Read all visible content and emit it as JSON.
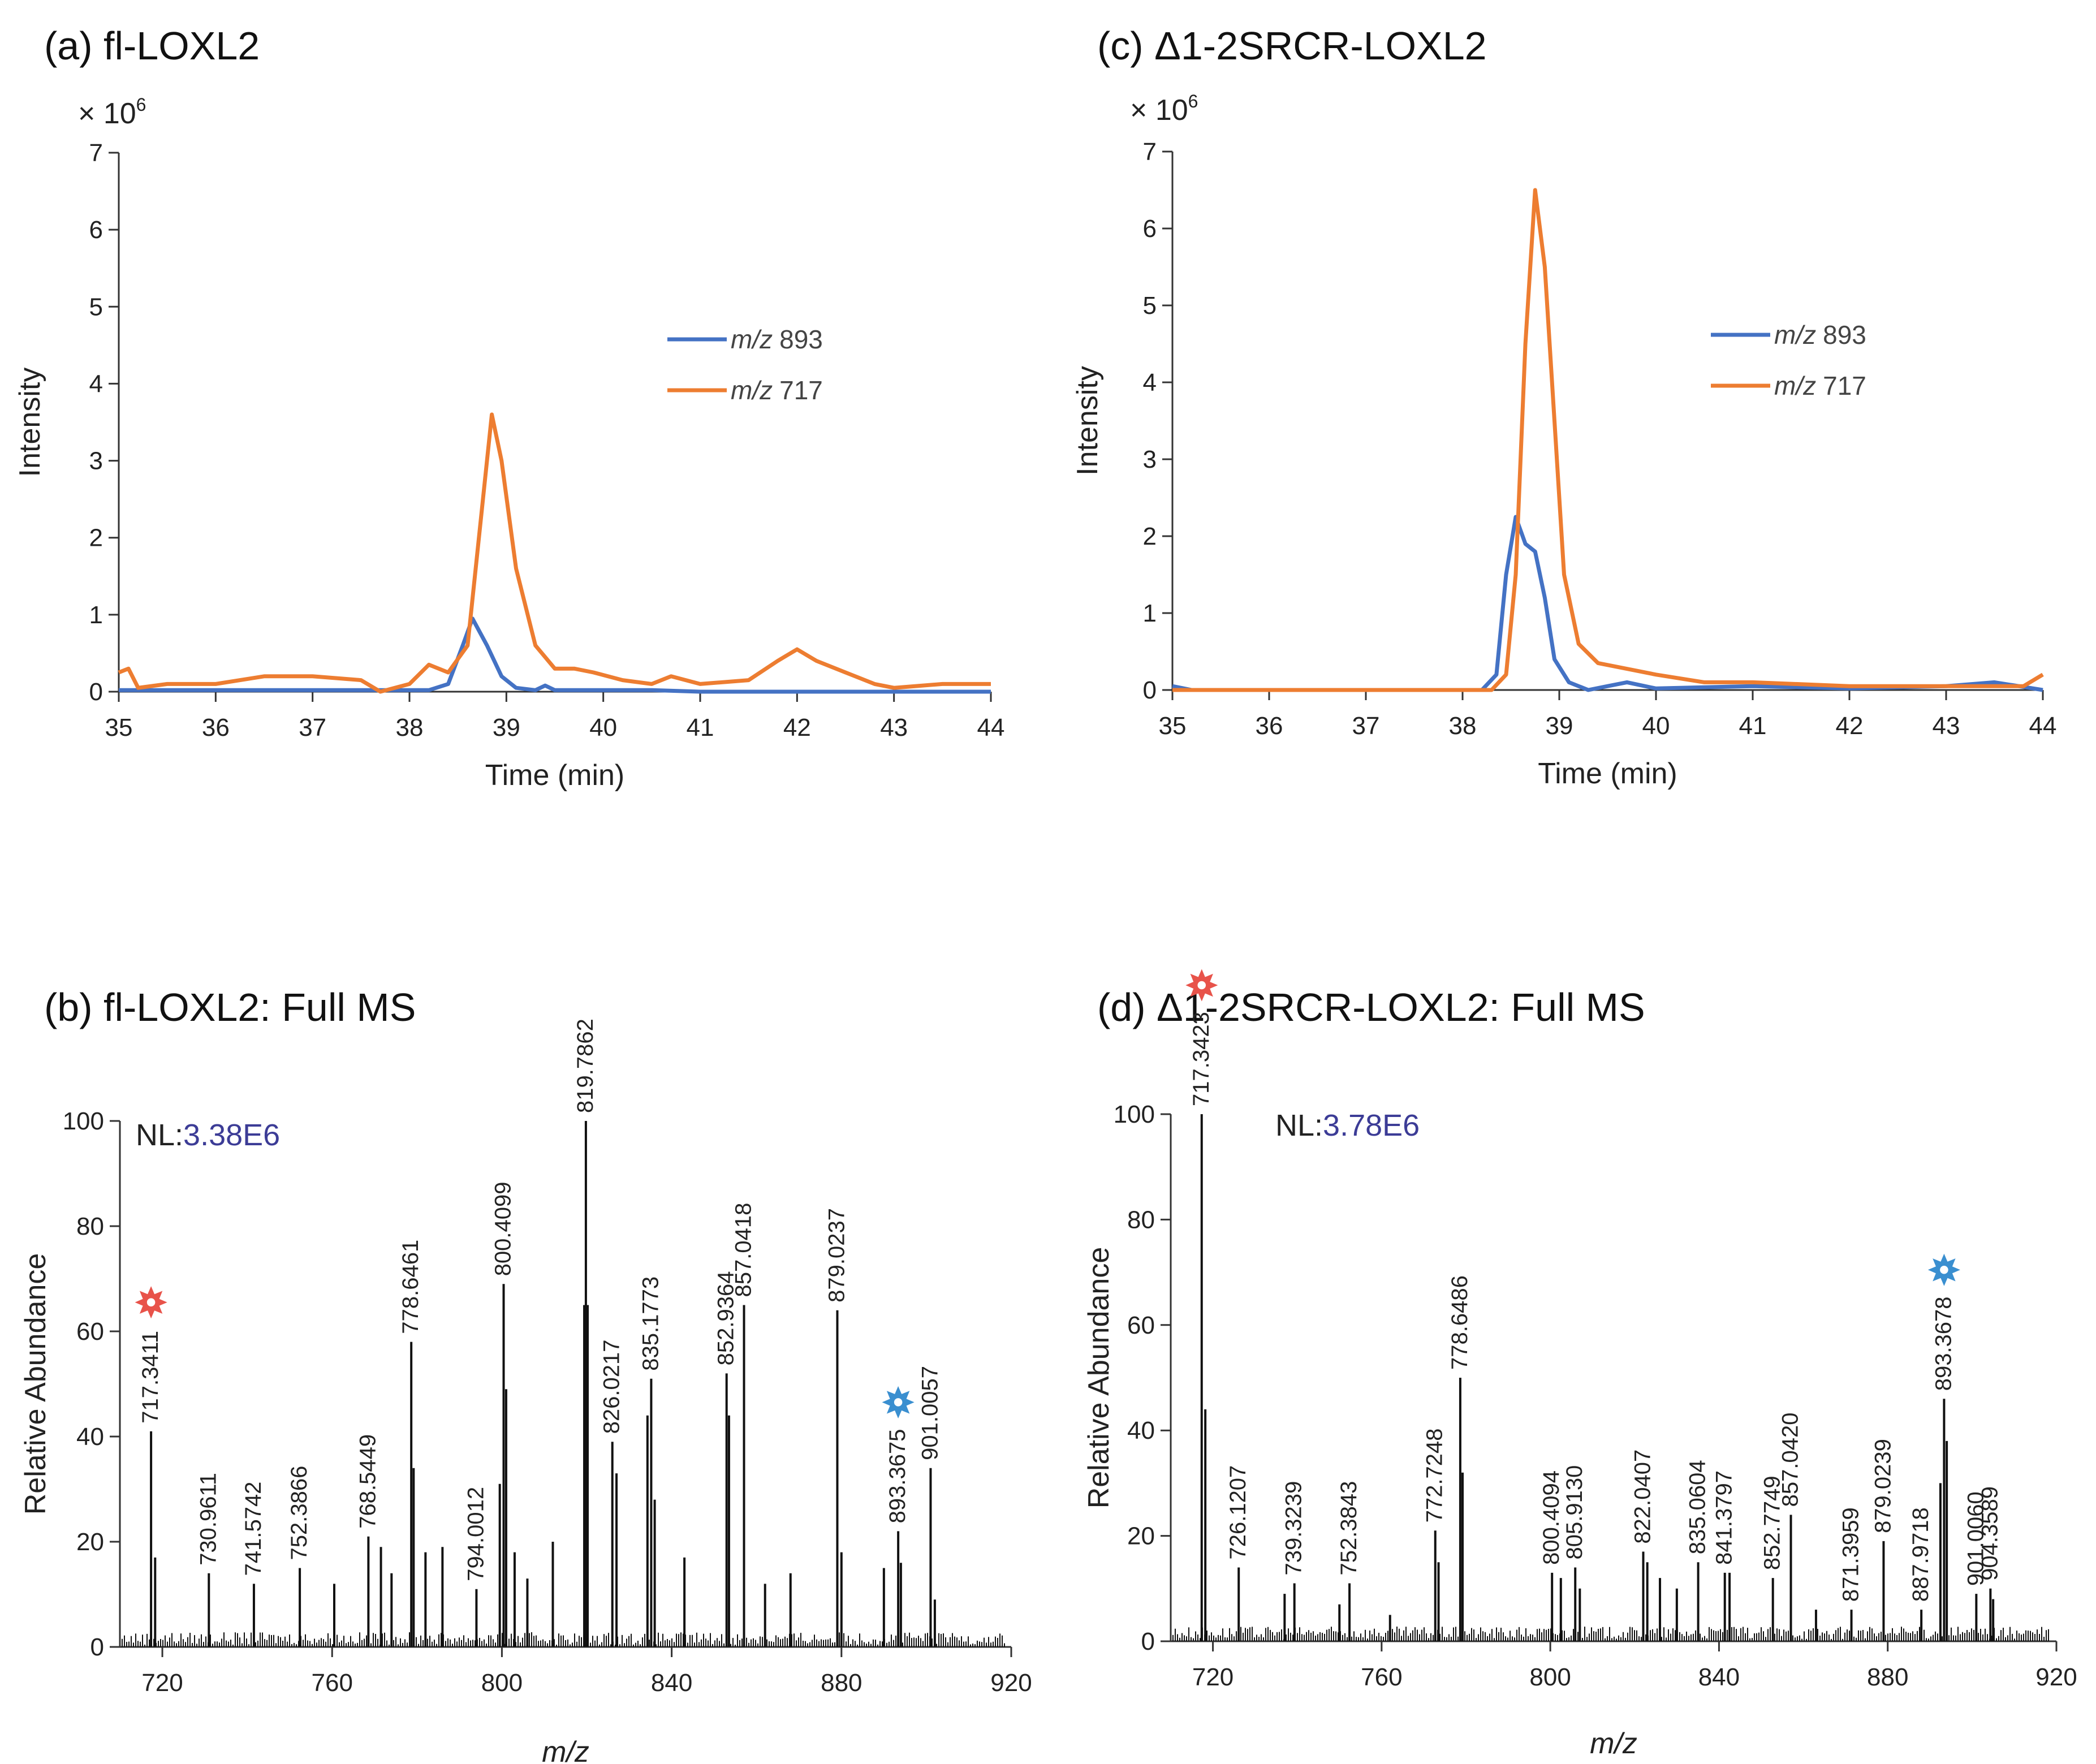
{
  "colors": {
    "mz893": "#4472c4",
    "mz717": "#ed7d31",
    "spectrum": "#111111",
    "nl_value": "#3c3c96",
    "star_red": "#e8534a",
    "star_blue": "#3a8fd0"
  },
  "chart_data": [
    {
      "id": "a",
      "type": "line",
      "title": "(a) fl-LOXL2",
      "multiplier": "× 10",
      "multiplier_exp": "6",
      "xlabel": "Time (min)",
      "ylabel": "Intensity",
      "xlim": [
        35,
        44
      ],
      "ylim": [
        0,
        7
      ],
      "xticks": [
        35,
        36,
        37,
        38,
        39,
        40,
        41,
        42,
        43,
        44
      ],
      "yticks": [
        0,
        1,
        2,
        3,
        4,
        5,
        6,
        7
      ],
      "legend_position": "right-middle",
      "series": [
        {
          "name": "m/z 893",
          "mz_prefix": "m/z",
          "mz_value": "893",
          "color": "#4472c4",
          "points": [
            [
              35,
              0.02
            ],
            [
              38.2,
              0.02
            ],
            [
              38.4,
              0.1
            ],
            [
              38.55,
              0.6
            ],
            [
              38.65,
              0.95
            ],
            [
              38.8,
              0.6
            ],
            [
              38.95,
              0.2
            ],
            [
              39.1,
              0.05
            ],
            [
              39.3,
              0.02
            ],
            [
              39.4,
              0.08
            ],
            [
              39.5,
              0.02
            ],
            [
              40.5,
              0.02
            ],
            [
              41,
              0.0
            ],
            [
              44,
              0.0
            ]
          ]
        },
        {
          "name": "m/z 717",
          "mz_prefix": "m/z",
          "mz_value": "717",
          "color": "#ed7d31",
          "points": [
            [
              35,
              0.25
            ],
            [
              35.1,
              0.3
            ],
            [
              35.2,
              0.05
            ],
            [
              35.5,
              0.1
            ],
            [
              36,
              0.1
            ],
            [
              36.5,
              0.2
            ],
            [
              37,
              0.2
            ],
            [
              37.5,
              0.15
            ],
            [
              37.7,
              0.0
            ],
            [
              38,
              0.1
            ],
            [
              38.2,
              0.35
            ],
            [
              38.4,
              0.25
            ],
            [
              38.6,
              0.6
            ],
            [
              38.75,
              2.4
            ],
            [
              38.85,
              3.6
            ],
            [
              38.95,
              3.0
            ],
            [
              39.1,
              1.6
            ],
            [
              39.3,
              0.6
            ],
            [
              39.5,
              0.3
            ],
            [
              39.7,
              0.3
            ],
            [
              39.9,
              0.25
            ],
            [
              40.2,
              0.15
            ],
            [
              40.5,
              0.1
            ],
            [
              40.7,
              0.2
            ],
            [
              41.0,
              0.1
            ],
            [
              41.5,
              0.15
            ],
            [
              41.8,
              0.4
            ],
            [
              42.0,
              0.55
            ],
            [
              42.2,
              0.4
            ],
            [
              42.5,
              0.25
            ],
            [
              42.8,
              0.1
            ],
            [
              43.0,
              0.05
            ],
            [
              43.5,
              0.1
            ],
            [
              44,
              0.1
            ]
          ]
        }
      ]
    },
    {
      "id": "c",
      "type": "line",
      "title": "(c) Δ1-2SRCR-LOXL2",
      "multiplier": "× 10",
      "multiplier_exp": "6",
      "xlabel": "Time (min)",
      "ylabel": "Intensity",
      "xlim": [
        35,
        44
      ],
      "ylim": [
        0,
        7
      ],
      "xticks": [
        35,
        36,
        37,
        38,
        39,
        40,
        41,
        42,
        43,
        44
      ],
      "yticks": [
        0,
        1,
        2,
        3,
        4,
        5,
        6,
        7
      ],
      "legend_position": "right-top",
      "series": [
        {
          "name": "m/z 893",
          "mz_prefix": "m/z",
          "mz_value": "893",
          "color": "#4472c4",
          "points": [
            [
              35,
              0.05
            ],
            [
              35.2,
              0.0
            ],
            [
              38.2,
              0.0
            ],
            [
              38.35,
              0.2
            ],
            [
              38.45,
              1.5
            ],
            [
              38.55,
              2.25
            ],
            [
              38.65,
              1.9
            ],
            [
              38.75,
              1.8
            ],
            [
              38.85,
              1.2
            ],
            [
              38.95,
              0.4
            ],
            [
              39.1,
              0.1
            ],
            [
              39.3,
              0.0
            ],
            [
              39.5,
              0.05
            ],
            [
              39.7,
              0.1
            ],
            [
              40,
              0.02
            ],
            [
              41,
              0.05
            ],
            [
              42,
              0.02
            ],
            [
              43,
              0.05
            ],
            [
              43.5,
              0.1
            ],
            [
              44,
              0.0
            ]
          ]
        },
        {
          "name": "m/z 717",
          "mz_prefix": "m/z",
          "mz_value": "717",
          "color": "#ed7d31",
          "points": [
            [
              35,
              0.0
            ],
            [
              38.3,
              0.0
            ],
            [
              38.45,
              0.2
            ],
            [
              38.55,
              1.5
            ],
            [
              38.65,
              4.5
            ],
            [
              38.75,
              6.5
            ],
            [
              38.85,
              5.5
            ],
            [
              38.95,
              3.5
            ],
            [
              39.05,
              1.5
            ],
            [
              39.2,
              0.6
            ],
            [
              39.4,
              0.35
            ],
            [
              39.6,
              0.3
            ],
            [
              40.0,
              0.2
            ],
            [
              40.5,
              0.1
            ],
            [
              41.0,
              0.1
            ],
            [
              42.0,
              0.05
            ],
            [
              43.0,
              0.05
            ],
            [
              43.8,
              0.05
            ],
            [
              44,
              0.2
            ]
          ]
        }
      ]
    },
    {
      "id": "b",
      "type": "bar",
      "title": "(b) fl-LOXL2: Full MS",
      "xlabel": "m/z",
      "ylabel": "Relative Abundance",
      "nl_prefix": "NL:",
      "nl_value": "3.38E6",
      "xlim": [
        710,
        920
      ],
      "ylim": [
        0,
        100
      ],
      "xticks": [
        720,
        760,
        800,
        840,
        880,
        920
      ],
      "yticks": [
        0,
        20,
        40,
        60,
        80,
        100
      ],
      "peaks": [
        {
          "mz": 717.3411,
          "value": 41,
          "label": "717.3411",
          "star": "red"
        },
        {
          "mz": 718.3,
          "value": 17
        },
        {
          "mz": 730.9611,
          "value": 14,
          "label": "730.9611"
        },
        {
          "mz": 741.5742,
          "value": 12,
          "label": "741.5742"
        },
        {
          "mz": 752.3866,
          "value": 15,
          "label": "752.3866"
        },
        {
          "mz": 760.5,
          "value": 12
        },
        {
          "mz": 768.5449,
          "value": 21,
          "label": "768.5449"
        },
        {
          "mz": 771.5,
          "value": 19
        },
        {
          "mz": 774.0,
          "value": 14
        },
        {
          "mz": 778.6461,
          "value": 58,
          "label": "778.6461"
        },
        {
          "mz": 779.2,
          "value": 34
        },
        {
          "mz": 782.0,
          "value": 18
        },
        {
          "mz": 786.0,
          "value": 19
        },
        {
          "mz": 794.0012,
          "value": 11,
          "label": "794.0012"
        },
        {
          "mz": 799.5,
          "value": 31
        },
        {
          "mz": 800.4099,
          "value": 69,
          "label": "800.4099"
        },
        {
          "mz": 801.0,
          "value": 49
        },
        {
          "mz": 803.0,
          "value": 18
        },
        {
          "mz": 806.0,
          "value": 13
        },
        {
          "mz": 812.0,
          "value": 20
        },
        {
          "mz": 819.4,
          "value": 65
        },
        {
          "mz": 819.7862,
          "value": 100,
          "label": "819.7862"
        },
        {
          "mz": 820.2,
          "value": 65
        },
        {
          "mz": 826.0217,
          "value": 39,
          "label": "826.0217"
        },
        {
          "mz": 827.0,
          "value": 33
        },
        {
          "mz": 834.3,
          "value": 44
        },
        {
          "mz": 835.1773,
          "value": 51,
          "label": "835.1773"
        },
        {
          "mz": 836.0,
          "value": 28
        },
        {
          "mz": 843.0,
          "value": 17
        },
        {
          "mz": 852.9364,
          "value": 52,
          "label": "852.9364"
        },
        {
          "mz": 853.5,
          "value": 44
        },
        {
          "mz": 857.0418,
          "value": 65,
          "label": "857.0418"
        },
        {
          "mz": 862.0,
          "value": 12
        },
        {
          "mz": 868.0,
          "value": 14
        },
        {
          "mz": 879.0237,
          "value": 64,
          "label": "879.0237"
        },
        {
          "mz": 880.0,
          "value": 18
        },
        {
          "mz": 890.0,
          "value": 15
        },
        {
          "mz": 893.3675,
          "value": 22,
          "label": "893.3675",
          "star": "blue"
        },
        {
          "mz": 894.0,
          "value": 16
        },
        {
          "mz": 901.0057,
          "value": 34,
          "label": "901.0057"
        },
        {
          "mz": 902.0,
          "value": 9
        }
      ]
    },
    {
      "id": "d",
      "type": "bar",
      "title": "(d) Δ1-2SRCR-LOXL2: Full MS",
      "xlabel": "m/z",
      "ylabel": "Relative Abundance",
      "nl_prefix": "NL:",
      "nl_value": "3.78E6",
      "xlim": [
        710,
        920
      ],
      "ylim": [
        0,
        100
      ],
      "xticks": [
        720,
        760,
        800,
        840,
        880,
        920
      ],
      "yticks": [
        0,
        20,
        40,
        60,
        80,
        100
      ],
      "peaks": [
        {
          "mz": 717.3423,
          "value": 100,
          "label": "717.3423",
          "star": "red"
        },
        {
          "mz": 718.2,
          "value": 44
        },
        {
          "mz": 726.1207,
          "value": 14,
          "label": "726.1207"
        },
        {
          "mz": 737.0,
          "value": 9
        },
        {
          "mz": 739.3239,
          "value": 11,
          "label": "739.3239"
        },
        {
          "mz": 750.0,
          "value": 7
        },
        {
          "mz": 752.3843,
          "value": 11,
          "label": "752.3843"
        },
        {
          "mz": 762.0,
          "value": 5
        },
        {
          "mz": 772.7248,
          "value": 21,
          "label": "772.7248"
        },
        {
          "mz": 773.5,
          "value": 15
        },
        {
          "mz": 778.6486,
          "value": 50,
          "label": "778.6486"
        },
        {
          "mz": 779.2,
          "value": 32
        },
        {
          "mz": 800.4094,
          "value": 13,
          "label": "800.4094"
        },
        {
          "mz": 802.5,
          "value": 12
        },
        {
          "mz": 805.913,
          "value": 14,
          "label": "805.9130"
        },
        {
          "mz": 807.0,
          "value": 10
        },
        {
          "mz": 822.0407,
          "value": 17,
          "label": "822.0407"
        },
        {
          "mz": 823.0,
          "value": 15
        },
        {
          "mz": 826.0,
          "value": 12
        },
        {
          "mz": 830.0,
          "value": 10
        },
        {
          "mz": 835.0604,
          "value": 15,
          "label": "835.0604"
        },
        {
          "mz": 841.3797,
          "value": 13,
          "label": "841.3797"
        },
        {
          "mz": 842.5,
          "value": 13
        },
        {
          "mz": 852.7749,
          "value": 12,
          "label": "852.7749"
        },
        {
          "mz": 857.042,
          "value": 24,
          "label": "857.0420"
        },
        {
          "mz": 863.0,
          "value": 6
        },
        {
          "mz": 871.3959,
          "value": 6,
          "label": "871.3959"
        },
        {
          "mz": 879.0239,
          "value": 19,
          "label": "879.0239"
        },
        {
          "mz": 887.9718,
          "value": 6,
          "label": "887.9718"
        },
        {
          "mz": 892.5,
          "value": 30
        },
        {
          "mz": 893.3678,
          "value": 46,
          "label": "893.3678",
          "star": "blue"
        },
        {
          "mz": 894.0,
          "value": 38
        },
        {
          "mz": 901.006,
          "value": 9,
          "label": "901.0060"
        },
        {
          "mz": 904.3589,
          "value": 10,
          "label": "904.3589"
        },
        {
          "mz": 905.0,
          "value": 8
        }
      ]
    }
  ]
}
